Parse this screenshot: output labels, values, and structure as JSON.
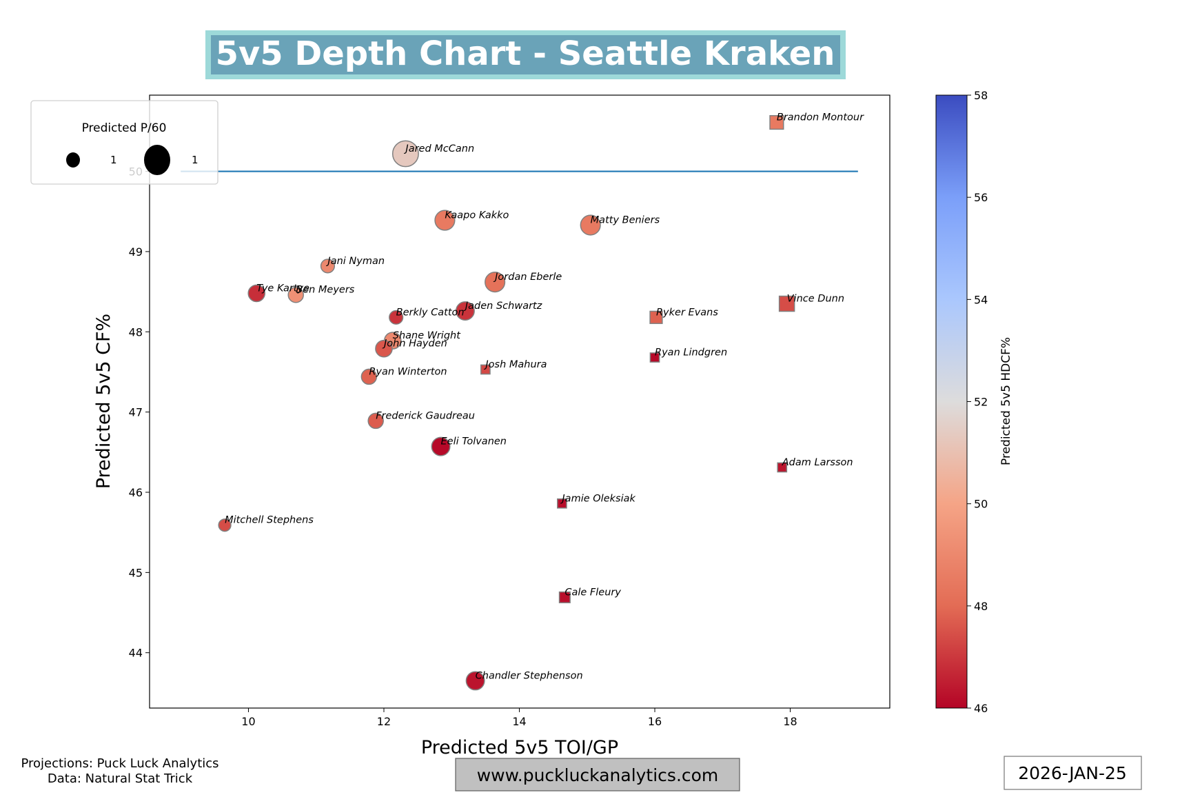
{
  "chart_data": {
    "type": "scatter",
    "title": "5v5 Depth Chart - Seattle Kraken",
    "xlabel": "Predicted 5v5 TOI/GP",
    "ylabel": "Predicted 5v5 CF%",
    "xlim": [
      8.54,
      19.47
    ],
    "ylim": [
      43.31,
      50.95
    ],
    "xticks": [
      10,
      12,
      14,
      16,
      18
    ],
    "yticks": [
      44,
      45,
      46,
      47,
      48,
      49,
      50
    ],
    "reference_line": {
      "y": 50,
      "x_start": 9,
      "x_end": 19,
      "color": "#1f77b4"
    },
    "legend": {
      "title": "Predicted P/60",
      "entries": [
        {
          "label": "1",
          "size": 0.5
        },
        {
          "label": "1",
          "size": 2.2
        }
      ],
      "placement": "upper-left"
    },
    "colorbar": {
      "label": "Predicted 5v5 HDCF%",
      "range": [
        46,
        58
      ],
      "ticks": [
        46,
        48,
        50,
        52,
        54,
        56,
        58
      ],
      "colormap": "coolwarm_r"
    },
    "marker_legend_note": {
      "circle": "forward",
      "square": "defense"
    },
    "points": [
      {
        "name": "Brandon Montour",
        "x": 17.8,
        "y": 50.61,
        "hdcf": 48.5,
        "p60": 0.8,
        "shape": "square"
      },
      {
        "name": "Jared McCann",
        "x": 12.32,
        "y": 50.22,
        "hdcf": 51.3,
        "p60": 2.9,
        "shape": "circle"
      },
      {
        "name": "Kaapo Kakko",
        "x": 12.9,
        "y": 49.39,
        "hdcf": 48.5,
        "p60": 1.7,
        "shape": "circle"
      },
      {
        "name": "Matty Beniers",
        "x": 15.05,
        "y": 49.33,
        "hdcf": 48.5,
        "p60": 1.7,
        "shape": "circle"
      },
      {
        "name": "Jani Nyman",
        "x": 11.17,
        "y": 48.82,
        "hdcf": 49.0,
        "p60": 0.8,
        "shape": "circle"
      },
      {
        "name": "Jordan Eberle",
        "x": 13.64,
        "y": 48.62,
        "hdcf": 48.2,
        "p60": 1.7,
        "shape": "circle"
      },
      {
        "name": "Tye Kartye",
        "x": 10.12,
        "y": 48.48,
        "hdcf": 46.8,
        "p60": 1.2,
        "shape": "circle"
      },
      {
        "name": "Ben Meyers",
        "x": 10.7,
        "y": 48.46,
        "hdcf": 49.3,
        "p60": 1.0,
        "shape": "circle"
      },
      {
        "name": "Vince Dunn",
        "x": 17.95,
        "y": 48.35,
        "hdcf": 47.4,
        "p60": 1.0,
        "shape": "square"
      },
      {
        "name": "Jaden Schwartz",
        "x": 13.2,
        "y": 48.26,
        "hdcf": 46.9,
        "p60": 1.45,
        "shape": "circle"
      },
      {
        "name": "Berkly Catton",
        "x": 12.18,
        "y": 48.18,
        "hdcf": 46.9,
        "p60": 0.8,
        "shape": "circle"
      },
      {
        "name": "Ryker Evans",
        "x": 16.02,
        "y": 48.18,
        "hdcf": 47.8,
        "p60": 0.65,
        "shape": "square"
      },
      {
        "name": "Shane Wright",
        "x": 12.13,
        "y": 47.89,
        "hdcf": 49.0,
        "p60": 1.2,
        "shape": "circle"
      },
      {
        "name": "John Hayden",
        "x": 12.0,
        "y": 47.79,
        "hdcf": 47.6,
        "p60": 1.2,
        "shape": "circle"
      },
      {
        "name": "Ryan Lindgren",
        "x": 16.0,
        "y": 47.68,
        "hdcf": 46.1,
        "p60": 0.36,
        "shape": "square"
      },
      {
        "name": "Josh Mahura",
        "x": 13.5,
        "y": 47.53,
        "hdcf": 47.3,
        "p60": 0.36,
        "shape": "square"
      },
      {
        "name": "Ryan Winterton",
        "x": 11.78,
        "y": 47.44,
        "hdcf": 47.8,
        "p60": 1.0,
        "shape": "circle"
      },
      {
        "name": "Frederick Gaudreau",
        "x": 11.88,
        "y": 46.89,
        "hdcf": 47.7,
        "p60": 1.0,
        "shape": "circle"
      },
      {
        "name": "Eeli Tolvanen",
        "x": 12.84,
        "y": 46.57,
        "hdcf": 46.1,
        "p60": 1.45,
        "shape": "circle"
      },
      {
        "name": "Adam Larsson",
        "x": 17.88,
        "y": 46.31,
        "hdcf": 46.3,
        "p60": 0.36,
        "shape": "square"
      },
      {
        "name": "Jamie Oleksiak",
        "x": 14.63,
        "y": 45.86,
        "hdcf": 46.2,
        "p60": 0.36,
        "shape": "square"
      },
      {
        "name": "Mitchell Stephens",
        "x": 9.65,
        "y": 45.59,
        "hdcf": 47.4,
        "p60": 0.65,
        "shape": "circle"
      },
      {
        "name": "Cale Fleury",
        "x": 14.67,
        "y": 44.69,
        "hdcf": 46.2,
        "p60": 0.5,
        "shape": "square"
      },
      {
        "name": "Chandler Stephenson",
        "x": 13.35,
        "y": 43.65,
        "hdcf": 46.3,
        "p60": 1.45,
        "shape": "circle"
      }
    ]
  },
  "footer": {
    "credits_line1": "Projections: Puck Luck Analytics",
    "credits_line2": "Data: Natural Stat Trick",
    "website": "www.puckluckanalytics.com",
    "date": "2026-JAN-25"
  },
  "colors": {
    "title_bg": "#6aa3b8",
    "title_border": "#9dd9d9",
    "ref_line": "#1f77b4",
    "url_bg": "#c0c0c0"
  }
}
